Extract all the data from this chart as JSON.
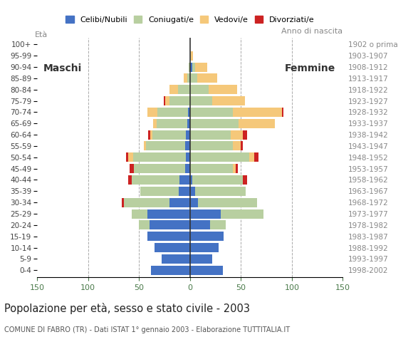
{
  "age_groups": [
    "0-4",
    "5-9",
    "10-14",
    "15-19",
    "20-24",
    "25-29",
    "30-34",
    "35-39",
    "40-44",
    "45-49",
    "50-54",
    "55-59",
    "60-64",
    "65-69",
    "70-74",
    "75-79",
    "80-84",
    "85-89",
    "90-94",
    "95-99",
    "100+"
  ],
  "birth_years": [
    "1998-2002",
    "1993-1997",
    "1988-1992",
    "1983-1987",
    "1978-1982",
    "1973-1977",
    "1968-1972",
    "1963-1967",
    "1958-1962",
    "1953-1957",
    "1948-1952",
    "1943-1947",
    "1938-1942",
    "1933-1937",
    "1928-1932",
    "1923-1927",
    "1918-1922",
    "1913-1917",
    "1908-1912",
    "1903-1907",
    "1902 o prima"
  ],
  "males": {
    "celibe": [
      38,
      28,
      35,
      42,
      40,
      42,
      20,
      11,
      10,
      5,
      4,
      5,
      4,
      3,
      2,
      0,
      0,
      0,
      0,
      0,
      0
    ],
    "coniugato": [
      0,
      0,
      0,
      0,
      10,
      15,
      45,
      38,
      47,
      50,
      52,
      38,
      33,
      30,
      30,
      20,
      12,
      3,
      1,
      0,
      0
    ],
    "vedovo": [
      0,
      0,
      0,
      0,
      0,
      0,
      0,
      0,
      0,
      0,
      5,
      2,
      2,
      3,
      10,
      4,
      8,
      3,
      0,
      0,
      0
    ],
    "divorziato": [
      0,
      0,
      0,
      0,
      0,
      0,
      2,
      0,
      4,
      4,
      2,
      0,
      2,
      0,
      0,
      2,
      0,
      0,
      0,
      0,
      0
    ]
  },
  "females": {
    "nubile": [
      32,
      22,
      28,
      33,
      20,
      30,
      8,
      5,
      2,
      0,
      0,
      0,
      0,
      0,
      0,
      0,
      0,
      0,
      2,
      0,
      0
    ],
    "coniugata": [
      0,
      0,
      0,
      0,
      15,
      42,
      58,
      50,
      50,
      42,
      58,
      42,
      40,
      48,
      42,
      22,
      18,
      7,
      3,
      1,
      0
    ],
    "vedova": [
      0,
      0,
      0,
      0,
      0,
      0,
      0,
      0,
      0,
      3,
      5,
      8,
      12,
      35,
      48,
      32,
      28,
      20,
      12,
      2,
      0
    ],
    "divorziata": [
      0,
      0,
      0,
      0,
      0,
      0,
      0,
      0,
      4,
      2,
      4,
      2,
      4,
      0,
      2,
      0,
      0,
      0,
      0,
      0,
      0
    ]
  },
  "colors": {
    "celibe_nubile": "#4472c4",
    "coniugato_coniugata": "#b8cfa0",
    "vedovo_vedova": "#f5c87a",
    "divorziato_divorziata": "#cc2222"
  },
  "title": "Popolazione per età, sesso e stato civile - 2003",
  "subtitle": "COMUNE DI FABRO (TR) - Dati ISTAT 1° gennaio 2003 - Elaborazione TUTTITALIA.IT",
  "xlabel_left": "Maschi",
  "xlabel_right": "Femmine",
  "ylabel_left": "Età",
  "ylabel_right": "Anno di nascita",
  "legend_labels": [
    "Celibi/Nubili",
    "Coniugati/e",
    "Vedovi/e",
    "Divorziati/e"
  ],
  "xlim": 150,
  "bg_color": "#ffffff",
  "grid_color": "#aaaaaa",
  "xticks": [
    -150,
    -100,
    -50,
    0,
    50,
    100,
    150
  ],
  "xtick_labels": [
    "150",
    "100",
    "50",
    "0",
    "50",
    "100",
    "150"
  ]
}
